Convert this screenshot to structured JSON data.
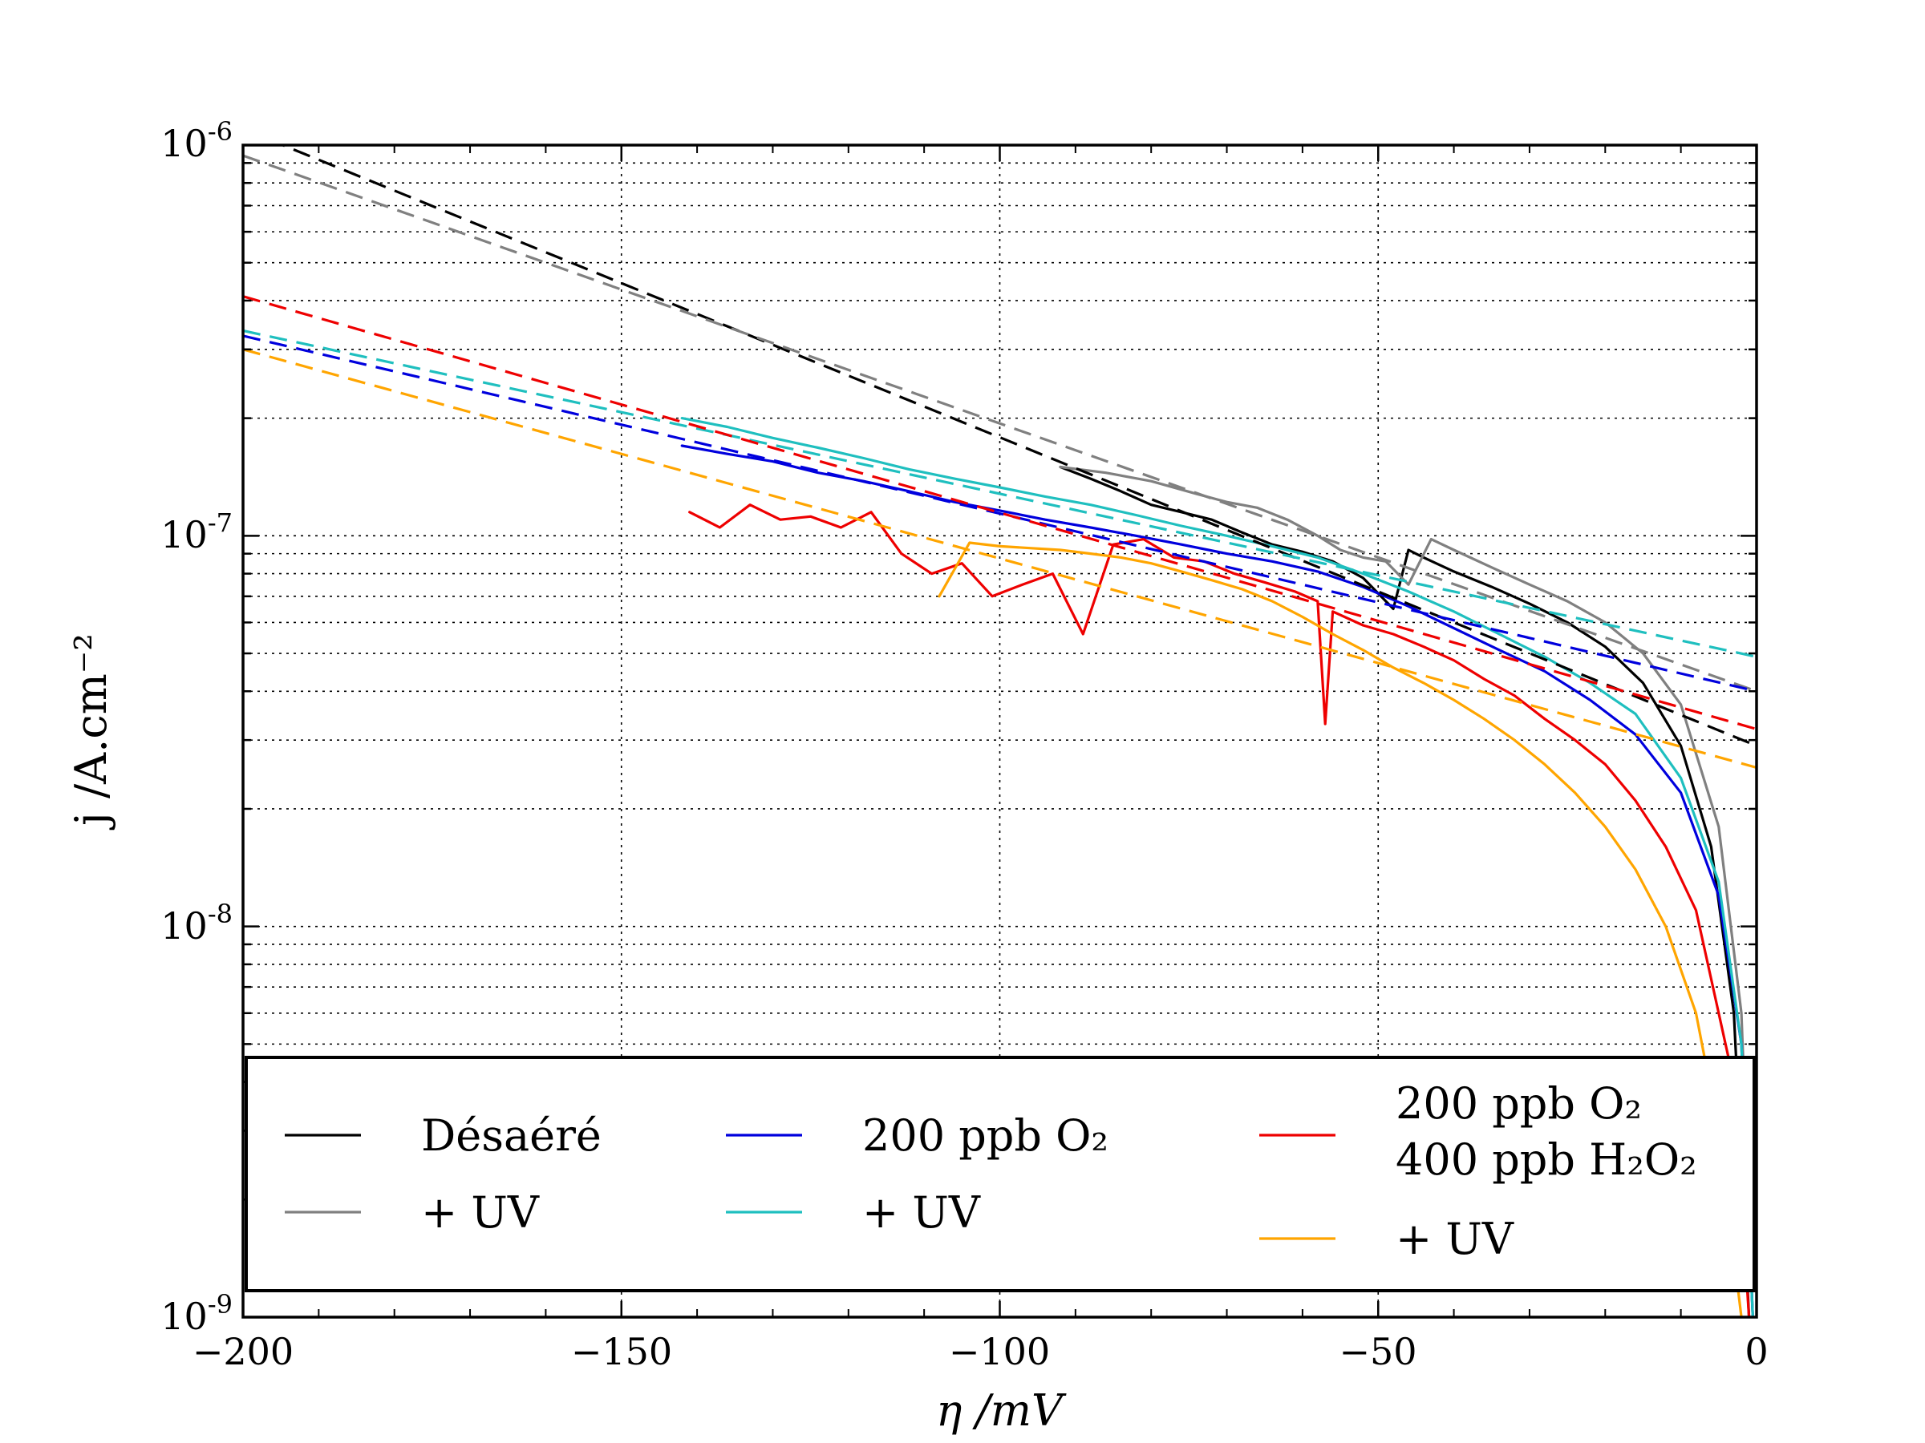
{
  "chart_data": {
    "type": "line",
    "title": "",
    "xlabel": "η /mV",
    "ylabel": "j /A.cm⁻²",
    "xlim": [
      -200,
      0
    ],
    "ylim": [
      1e-09,
      1e-06
    ],
    "yscale": "log",
    "grid": true,
    "legend_placement": "bottom",
    "x_ticks": [
      {
        "value": -200,
        "label": "−200"
      },
      {
        "value": -150,
        "label": "−150"
      },
      {
        "value": -100,
        "label": "−100"
      },
      {
        "value": -50,
        "label": "−50"
      },
      {
        "value": 0,
        "label": "0"
      }
    ],
    "y_ticks": [
      {
        "value": 1e-06,
        "base": "10",
        "exp": "-6"
      },
      {
        "value": 1e-07,
        "base": "10",
        "exp": "-7"
      },
      {
        "value": 1e-08,
        "base": "10",
        "exp": "-8"
      },
      {
        "value": 1e-09,
        "base": "10",
        "exp": "-9"
      }
    ],
    "legend": [
      {
        "label": "Désaéré",
        "color": "#000000"
      },
      {
        "label": "+ UV",
        "color": "#808080"
      },
      {
        "label": "200 ppb O₂",
        "color": "#0000dd"
      },
      {
        "label": "+ UV",
        "color": "#1fbfbf"
      },
      {
        "label": "200 ppb O₂",
        "label2": "400 ppb H₂O₂",
        "color": "#ee0000"
      },
      {
        "label": "+ UV",
        "color": "#ffa500"
      }
    ],
    "series": [
      {
        "color": "#000000",
        "style": "solid",
        "x": [
          -92,
          -88,
          -84,
          -80,
          -76,
          -72,
          -68,
          -64,
          -60,
          -56,
          -52,
          -48,
          -46,
          -44,
          -40,
          -35,
          -30,
          -25,
          -20,
          -15,
          -10,
          -6,
          -3,
          -1
        ],
        "y": [
          1.5e-07,
          1.4e-07,
          1.3e-07,
          1.2e-07,
          1.15e-07,
          1.1e-07,
          1.02e-07,
          9.5e-08,
          9.1e-08,
          8.6e-08,
          7.8e-08,
          6.5e-08,
          9.2e-08,
          8.8e-08,
          8.1e-08,
          7.4e-08,
          6.7e-08,
          6e-08,
          5.2e-08,
          4.2e-08,
          2.9e-08,
          1.6e-08,
          6e-09,
          1e-09
        ]
      },
      {
        "color": "#808080",
        "style": "solid",
        "x": [
          -92,
          -86,
          -80,
          -74,
          -70,
          -66,
          -62,
          -58,
          -55,
          -52,
          -49,
          -46,
          -43,
          -40,
          -35,
          -30,
          -25,
          -20,
          -15,
          -10,
          -5,
          -2,
          -0.5
        ],
        "y": [
          1.5e-07,
          1.45e-07,
          1.38e-07,
          1.28e-07,
          1.22e-07,
          1.18e-07,
          1.1e-07,
          1e-07,
          9.2e-08,
          8.8e-08,
          8.6e-08,
          7.5e-08,
          9.8e-08,
          9.2e-08,
          8.3e-08,
          7.5e-08,
          6.8e-08,
          6e-08,
          5e-08,
          3.7e-08,
          1.8e-08,
          6e-09,
          1e-09
        ]
      },
      {
        "color": "#0000dd",
        "style": "solid",
        "x": [
          -142,
          -136,
          -130,
          -124,
          -118,
          -112,
          -106,
          -100,
          -94,
          -88,
          -82,
          -76,
          -70,
          -64,
          -58,
          -52,
          -46,
          -40,
          -34,
          -28,
          -22,
          -16,
          -10,
          -5,
          -2,
          -0.5
        ],
        "y": [
          1.7e-07,
          1.62e-07,
          1.55e-07,
          1.45e-07,
          1.38e-07,
          1.3e-07,
          1.22e-07,
          1.16e-07,
          1.1e-07,
          1.05e-07,
          1e-07,
          9.5e-08,
          9e-08,
          8.6e-08,
          8.1e-08,
          7.4e-08,
          6.6e-08,
          5.8e-08,
          5.1e-08,
          4.5e-08,
          3.8e-08,
          3.1e-08,
          2.2e-08,
          1.2e-08,
          5e-09,
          1e-09
        ]
      },
      {
        "color": "#1fbfbf",
        "style": "solid",
        "x": [
          -142,
          -136,
          -130,
          -124,
          -118,
          -112,
          -106,
          -100,
          -94,
          -88,
          -82,
          -76,
          -70,
          -64,
          -58,
          -52,
          -46,
          -40,
          -34,
          -28,
          -22,
          -16,
          -10,
          -5,
          -2,
          -0.5
        ],
        "y": [
          2e-07,
          1.9e-07,
          1.78e-07,
          1.68e-07,
          1.58e-07,
          1.48e-07,
          1.4e-07,
          1.33e-07,
          1.26e-07,
          1.2e-07,
          1.13e-07,
          1.06e-07,
          1e-07,
          9.4e-08,
          8.8e-08,
          8e-08,
          7.2e-08,
          6.4e-08,
          5.6e-08,
          4.9e-08,
          4.2e-08,
          3.5e-08,
          2.4e-08,
          1.3e-08,
          5e-09,
          1e-09
        ]
      },
      {
        "color": "#ee0000",
        "style": "solid",
        "x": [
          -141,
          -137,
          -133,
          -129,
          -125,
          -121,
          -117,
          -113,
          -109,
          -105,
          -101,
          -97,
          -93,
          -89,
          -85,
          -81,
          -77,
          -73,
          -69,
          -65,
          -61,
          -58,
          -57,
          -56,
          -52,
          -48,
          -44,
          -40,
          -36,
          -32,
          -28,
          -24,
          -20,
          -16,
          -12,
          -8,
          -5,
          -3,
          -1
        ],
        "y": [
          1.15e-07,
          1.05e-07,
          1.2e-07,
          1.1e-07,
          1.12e-07,
          1.05e-07,
          1.15e-07,
          9e-08,
          8e-08,
          8.5e-08,
          7e-08,
          7.5e-08,
          8e-08,
          5.6e-08,
          9.5e-08,
          9.8e-08,
          8.8e-08,
          8.6e-08,
          8e-08,
          7.6e-08,
          7.2e-08,
          6.8e-08,
          3.3e-08,
          6.4e-08,
          5.9e-08,
          5.6e-08,
          5.2e-08,
          4.8e-08,
          4.3e-08,
          3.9e-08,
          3.4e-08,
          3e-08,
          2.6e-08,
          2.1e-08,
          1.6e-08,
          1.1e-08,
          6e-09,
          4e-09,
          1e-09
        ]
      },
      {
        "color": "#ffa500",
        "style": "solid",
        "x": [
          -108,
          -104,
          -100,
          -96,
          -92,
          -88,
          -84,
          -80,
          -76,
          -72,
          -68,
          -64,
          -60,
          -56,
          -52,
          -48,
          -44,
          -40,
          -36,
          -32,
          -28,
          -24,
          -20,
          -16,
          -12,
          -8,
          -5,
          -2
        ],
        "y": [
          7e-08,
          9.6e-08,
          9.4e-08,
          9.3e-08,
          9.2e-08,
          9e-08,
          8.8e-08,
          8.5e-08,
          8.1e-08,
          7.7e-08,
          7.3e-08,
          6.8e-08,
          6.2e-08,
          5.6e-08,
          5.1e-08,
          4.6e-08,
          4.2e-08,
          3.8e-08,
          3.4e-08,
          3e-08,
          2.6e-08,
          2.2e-08,
          1.8e-08,
          1.4e-08,
          1e-08,
          6e-09,
          3e-09,
          1e-09
        ]
      },
      {
        "color": "#000000",
        "style": "dashed",
        "x": [
          -200,
          0
        ],
        "y": [
          1.1e-06,
          2.9e-08
        ]
      },
      {
        "color": "#808080",
        "style": "dashed",
        "x": [
          -200,
          0
        ],
        "y": [
          9.4e-07,
          4e-08
        ]
      },
      {
        "color": "#0000dd",
        "style": "dashed",
        "x": [
          -200,
          0
        ],
        "y": [
          3.25e-07,
          4e-08
        ]
      },
      {
        "color": "#1fbfbf",
        "style": "dashed",
        "x": [
          -200,
          0
        ],
        "y": [
          3.35e-07,
          4.9e-08
        ]
      },
      {
        "color": "#ee0000",
        "style": "dashed",
        "x": [
          -200,
          0
        ],
        "y": [
          4.1e-07,
          3.2e-08
        ]
      },
      {
        "color": "#ffa500",
        "style": "dashed",
        "x": [
          -200,
          0
        ],
        "y": [
          3e-07,
          2.55e-08
        ]
      }
    ]
  }
}
